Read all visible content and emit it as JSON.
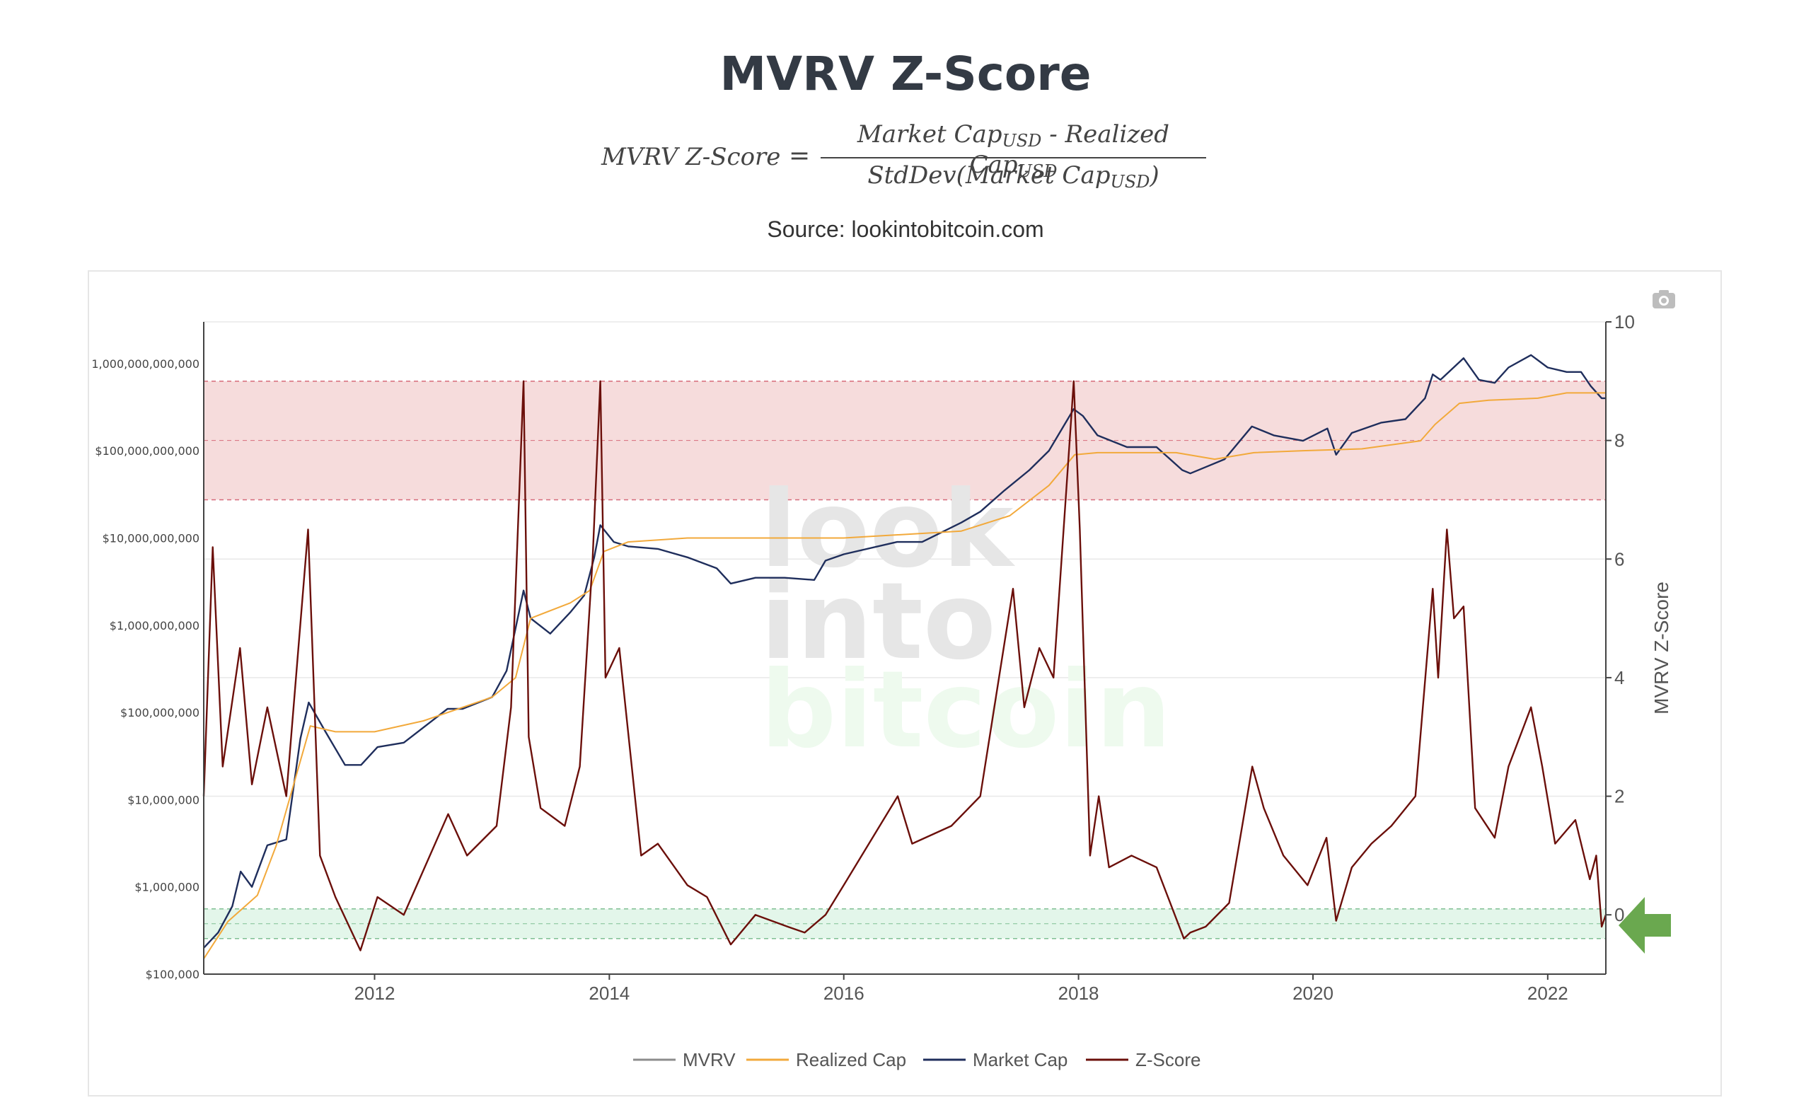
{
  "page": {
    "title": "MVRV Z-Score",
    "formula": {
      "lhs": "MVRV Z-Score",
      "eq": "=",
      "numerator_a": "Market Cap",
      "numerator_minus": " - ",
      "numerator_b": "Realized Cap",
      "denominator_a": "StdDev(Market Cap",
      "denominator_close": ")",
      "subscript": "USD"
    },
    "source": "Source: lookintobitcoin.com",
    "watermark": [
      "look",
      "into",
      "bitcoin"
    ]
  },
  "icons": {
    "camera": "camera-icon",
    "arrow": "green-arrow-left-icon"
  },
  "colors": {
    "mvrv": "#8c8c8c",
    "realized_cap": "#f2a93b",
    "market_cap": "#1f2e5c",
    "z_score": "#6b0f0a",
    "red_zone": "#f6dcdc",
    "green_zone": "#e3f6ea",
    "arrow": "#6aa84f"
  },
  "chart_data": {
    "type": "line",
    "title": "",
    "xlabel": "",
    "y_left": {
      "label": "",
      "scale": "log",
      "range": [
        100000,
        3000000000000
      ],
      "ticks": [
        100000,
        1000000,
        10000000,
        100000000,
        1000000000,
        10000000000,
        100000000000,
        1000000000000
      ],
      "tick_labels": [
        "$100,000",
        "$1,000,000",
        "$10,000,000",
        "$100,000,000",
        "$1,000,000,000",
        "$10,000,000,000",
        "$100,000,000,000",
        "1,000,000,000,000"
      ]
    },
    "y_right": {
      "label": "MVRV Z-Score",
      "range": [
        -1,
        10
      ],
      "ticks": [
        0,
        2,
        4,
        6,
        8,
        10
      ],
      "tick_labels": [
        "0",
        "2",
        "4",
        "6",
        "8",
        "10"
      ]
    },
    "x_axis": {
      "range": [
        "2010-07-18",
        "2022-07-01"
      ],
      "tick_labels": [
        "2012",
        "2014",
        "2016",
        "2018",
        "2020",
        "2022"
      ]
    },
    "bands": [
      {
        "name": "red-zone",
        "from": 7,
        "to": 9
      },
      {
        "name": "green-zone",
        "from": -0.4,
        "to": 0.1
      }
    ],
    "legend": [
      "MVRV",
      "Realized Cap",
      "Market Cap",
      "Z-Score"
    ],
    "legend_position": "bottom-center",
    "series": [
      {
        "name": "Market Cap",
        "axis": "left",
        "x": [
          "2010-07-18",
          "2010-09-01",
          "2010-10-15",
          "2010-11-10",
          "2010-12-15",
          "2011-02-01",
          "2011-04-01",
          "2011-05-15",
          "2011-06-10",
          "2011-08-01",
          "2011-10-01",
          "2011-11-20",
          "2012-01-10",
          "2012-04-01",
          "2012-08-15",
          "2012-10-01",
          "2013-01-01",
          "2013-02-15",
          "2013-04-09",
          "2013-05-01",
          "2013-07-01",
          "2013-09-01",
          "2013-10-15",
          "2013-11-15",
          "2013-12-04",
          "2014-01-15",
          "2014-03-01",
          "2014-06-01",
          "2014-09-01",
          "2014-12-01",
          "2015-01-14",
          "2015-04-01",
          "2015-07-01",
          "2015-10-01",
          "2015-11-05",
          "2016-01-01",
          "2016-06-15",
          "2016-09-01",
          "2017-01-01",
          "2017-03-01",
          "2017-05-15",
          "2017-08-01",
          "2017-10-01",
          "2017-12-17",
          "2018-01-15",
          "2018-03-01",
          "2018-06-01",
          "2018-09-01",
          "2018-11-20",
          "2018-12-15",
          "2019-02-01",
          "2019-04-01",
          "2019-06-25",
          "2019-09-01",
          "2019-12-01",
          "2020-02-15",
          "2020-03-13",
          "2020-05-01",
          "2020-08-01",
          "2020-10-15",
          "2020-12-15",
          "2021-01-08",
          "2021-02-01",
          "2021-04-14",
          "2021-06-01",
          "2021-07-20",
          "2021-09-01",
          "2021-11-10",
          "2022-01-01",
          "2022-03-01",
          "2022-04-15",
          "2022-05-15",
          "2022-06-18",
          "2022-07-01"
        ],
        "values": [
          200000,
          300000,
          600000,
          1500000,
          1000000,
          3000000,
          3500000,
          50000000,
          130000000,
          60000000,
          25000000,
          25000000,
          40000000,
          45000000,
          110000000,
          110000000,
          150000000,
          300000000,
          2500000000,
          1200000000,
          800000000,
          1400000000,
          2200000000,
          6000000000,
          14000000000,
          9000000000,
          8000000000,
          7500000000,
          6000000000,
          4500000000,
          3000000000,
          3500000000,
          3500000000,
          3300000000,
          5500000000,
          6500000000,
          9000000000,
          9000000000,
          15000000000,
          20000000000,
          35000000000,
          60000000000,
          100000000000,
          300000000000,
          250000000000,
          150000000000,
          110000000000,
          110000000000,
          60000000000,
          55000000000,
          65000000000,
          80000000000,
          190000000000,
          150000000000,
          130000000000,
          180000000000,
          90000000000,
          160000000000,
          210000000000,
          230000000000,
          400000000000,
          750000000000,
          650000000000,
          1150000000000,
          650000000000,
          600000000000,
          900000000000,
          1250000000000,
          900000000000,
          800000000000,
          800000000000,
          550000000000,
          400000000000,
          400000000000
        ]
      },
      {
        "name": "Realized Cap",
        "axis": "left",
        "x": [
          "2010-07-18",
          "2010-10-01",
          "2011-01-01",
          "2011-03-01",
          "2011-06-15",
          "2011-09-01",
          "2012-01-01",
          "2012-06-01",
          "2013-01-01",
          "2013-03-15",
          "2013-05-01",
          "2013-09-01",
          "2013-11-01",
          "2013-12-15",
          "2014-03-01",
          "2014-09-01",
          "2015-01-01",
          "2016-01-01",
          "2017-01-01",
          "2017-06-01",
          "2017-10-01",
          "2017-12-20",
          "2018-03-01",
          "2018-11-01",
          "2019-03-01",
          "2019-07-01",
          "2019-12-01",
          "2020-06-01",
          "2020-12-01",
          "2021-01-15",
          "2021-04-01",
          "2021-07-01",
          "2021-12-01",
          "2022-03-01",
          "2022-07-01"
        ],
        "values": [
          150000,
          400000,
          800000,
          3000000,
          70000000,
          60000000,
          60000000,
          80000000,
          150000000,
          250000000,
          1200000000,
          1800000000,
          2500000000,
          7000000000,
          9000000000,
          10000000000,
          10000000000,
          10000000000,
          12000000000,
          18000000000,
          40000000000,
          90000000000,
          95000000000,
          95000000000,
          80000000000,
          95000000000,
          100000000000,
          105000000000,
          130000000000,
          200000000000,
          350000000000,
          380000000000,
          400000000000,
          460000000000,
          460000000000
        ]
      },
      {
        "name": "Z-Score",
        "axis": "right",
        "x": [
          "2010-07-18",
          "2010-08-15",
          "2010-09-15",
          "2010-11-08",
          "2010-12-15",
          "2011-02-01",
          "2011-04-01",
          "2011-06-08",
          "2011-07-15",
          "2011-09-01",
          "2011-11-18",
          "2012-01-10",
          "2012-04-01",
          "2012-08-17",
          "2012-10-15",
          "2013-01-15",
          "2013-03-01",
          "2013-04-09",
          "2013-04-25",
          "2013-06-01",
          "2013-08-15",
          "2013-10-01",
          "2013-11-10",
          "2013-12-04",
          "2013-12-20",
          "2014-02-01",
          "2014-04-10",
          "2014-06-01",
          "2014-09-01",
          "2014-11-01",
          "2015-01-14",
          "2015-04-01",
          "2015-07-10",
          "2015-09-01",
          "2015-11-05",
          "2016-01-01",
          "2016-06-17",
          "2016-08-01",
          "2016-12-01",
          "2017-03-01",
          "2017-06-11",
          "2017-07-16",
          "2017-09-01",
          "2017-10-15",
          "2017-12-17",
          "2018-01-05",
          "2018-02-06",
          "2018-03-05",
          "2018-04-06",
          "2018-06-15",
          "2018-09-01",
          "2018-11-25",
          "2018-12-15",
          "2019-02-01",
          "2019-04-15",
          "2019-06-26",
          "2019-08-01",
          "2019-10-01",
          "2019-12-15",
          "2020-02-12",
          "2020-03-13",
          "2020-05-01",
          "2020-07-01",
          "2020-09-01",
          "2020-11-15",
          "2021-01-08",
          "2021-01-25",
          "2021-02-21",
          "2021-03-15",
          "2021-04-14",
          "2021-05-20",
          "2021-07-20",
          "2021-09-01",
          "2021-10-20",
          "2021-11-10",
          "2021-12-15",
          "2022-01-24",
          "2022-03-28",
          "2022-05-12",
          "2022-06-01",
          "2022-06-18",
          "2022-07-01"
        ],
        "values": [
          2.0,
          6.2,
          2.5,
          4.5,
          2.2,
          3.5,
          2.0,
          6.5,
          1.0,
          0.3,
          -0.6,
          0.3,
          0.0,
          1.7,
          1.0,
          1.5,
          3.5,
          9.0,
          3.0,
          1.8,
          1.5,
          2.5,
          6.0,
          9.0,
          4.0,
          4.5,
          1.0,
          1.2,
          0.5,
          0.3,
          -0.5,
          0.0,
          -0.2,
          -0.3,
          0.0,
          0.5,
          2.0,
          1.2,
          1.5,
          2.0,
          5.5,
          3.5,
          4.5,
          4.0,
          9.0,
          6.5,
          1.0,
          2.0,
          0.8,
          1.0,
          0.8,
          -0.4,
          -0.3,
          -0.2,
          0.2,
          2.5,
          1.8,
          1.0,
          0.5,
          1.3,
          -0.1,
          0.8,
          1.2,
          1.5,
          2.0,
          5.5,
          4.0,
          6.5,
          5.0,
          5.2,
          1.8,
          1.3,
          2.5,
          3.2,
          3.5,
          2.5,
          1.2,
          1.6,
          0.6,
          1.0,
          -0.2,
          0.0
        ]
      },
      {
        "name": "MVRV",
        "axis": "left",
        "note_label": "MVRV",
        "x": [],
        "values": []
      }
    ]
  }
}
